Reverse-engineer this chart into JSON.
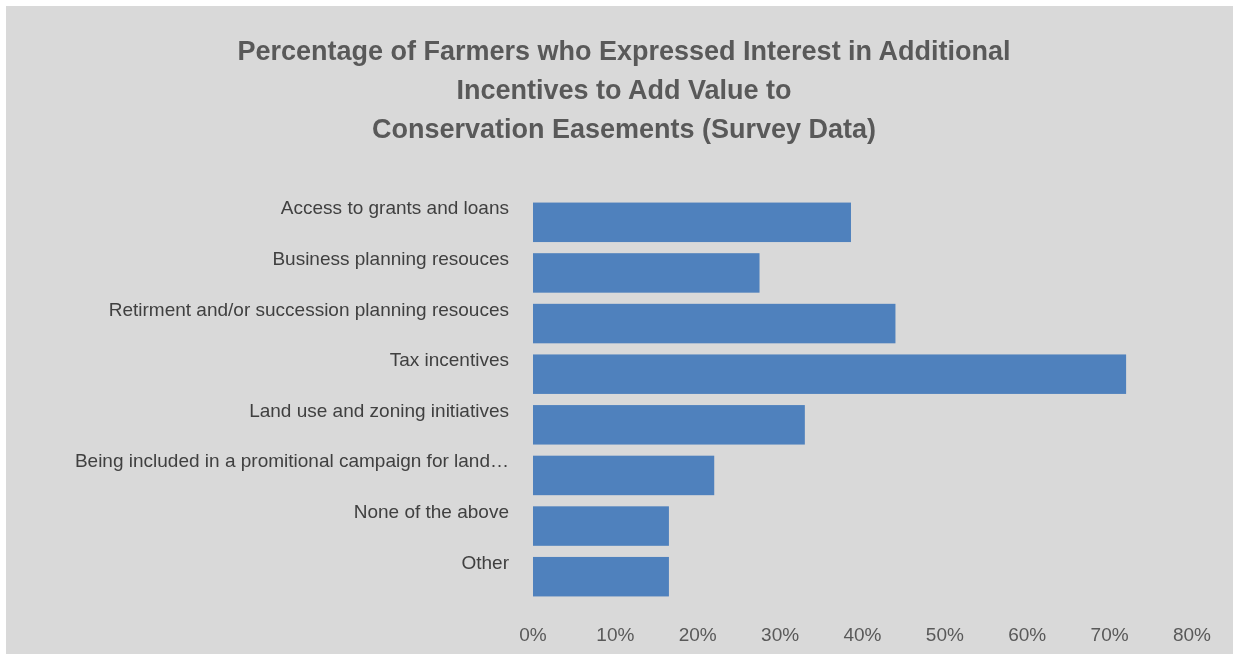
{
  "chart_data": {
    "type": "bar",
    "orientation": "horizontal",
    "title": "Percentage of Farmers who Expressed Interest in Additional\nIncentives to Add Value to\nConservation Easements (Survey Data)",
    "categories": [
      "Access to grants and loans",
      "Business planning resouces",
      "Retirment and/or succession planning resouces",
      "Tax incentives",
      "Land use and zoning initiatives",
      "Being included in a promitional campaign for land…",
      "None of the above",
      "Other"
    ],
    "values": [
      38.6,
      27.5,
      44,
      72,
      33,
      22,
      16.5,
      16.5
    ],
    "color": "#4f81bd",
    "xlim": [
      0,
      80
    ],
    "xticks": [
      {
        "value": 0,
        "label": "0%"
      },
      {
        "value": 10,
        "label": "10%"
      },
      {
        "value": 20,
        "label": "20%"
      },
      {
        "value": 30,
        "label": "30%"
      },
      {
        "value": 40,
        "label": "40%"
      },
      {
        "value": 50,
        "label": "50%"
      },
      {
        "value": 60,
        "label": "60%"
      },
      {
        "value": 70,
        "label": "70%"
      },
      {
        "value": 80,
        "label": "80%"
      }
    ],
    "grid": false
  }
}
